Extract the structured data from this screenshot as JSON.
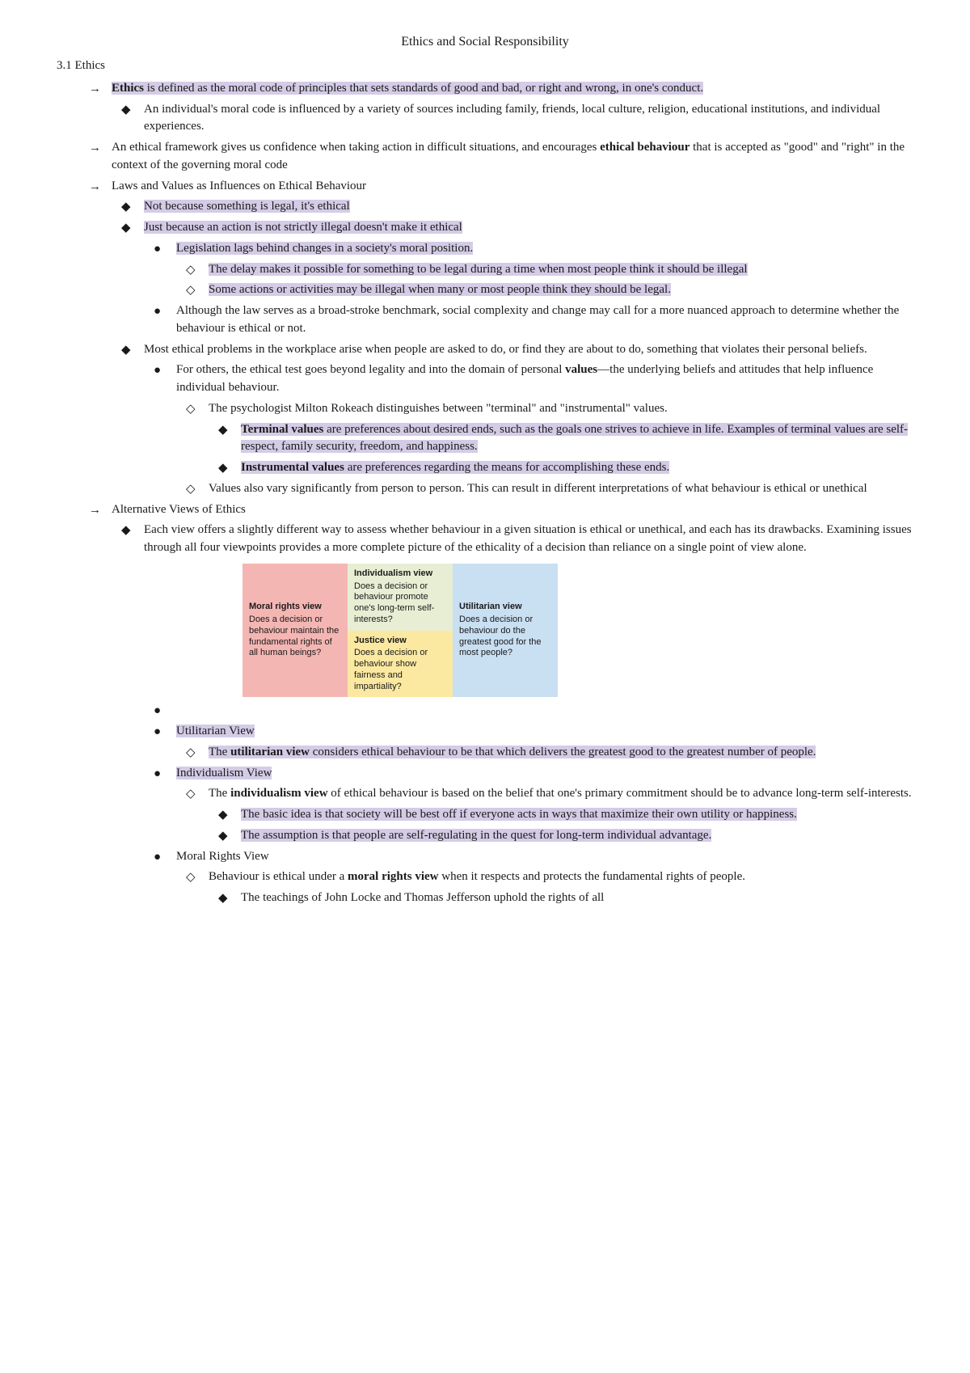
{
  "title": "Ethics and Social Responsibility",
  "section": "3.1 Ethics",
  "items": {
    "a1_pre": "Ethics",
    "a1_post": " is defined as the moral code of principles that sets standards of good and bad, or right and wrong, in one's conduct.",
    "a1a": "An individual's moral code is influenced by a variety of sources including family, friends, local culture, religion, educational institutions, and individual experiences.",
    "a2_pre": "An ethical framework gives us confidence when taking action in difficult situations, and encourages ",
    "a2_b": "ethical behaviour",
    "a2_post": " that is accepted as \"good\" and \"right\" in the context of the governing moral code",
    "a3": "Laws and Values as Influences on Ethical Behaviour",
    "a3a": "Not because something is legal, it's ethical",
    "a3b": "Just because an action is not strictly illegal doesn't make it ethical",
    "a3b1": "Legislation lags behind changes in a society's moral position.",
    "a3b1a": "The delay makes it possible for something to be legal during a time when most people think it should be illegal",
    "a3b1b": "Some actions or activities may be illegal when many or most people think they should be legal.",
    "a3b2": "Although the law serves as a broad-stroke benchmark, social complexity and change may call for a more nuanced approach to determine whether the behaviour is ethical or not.",
    "a3c": "Most ethical problems in the workplace arise when people are asked to do, or find they are about to do, something that violates their personal beliefs.",
    "a3c1_pre": "For others, the ethical test goes beyond legality and into the domain of personal ",
    "a3c1_b": "values",
    "a3c1_post": "—the underlying beliefs and attitudes that help influence individual behaviour.",
    "a3c1a": "The psychologist Milton Rokeach distinguishes between \"terminal\" and \"instrumental\" values.",
    "a3c1a1_b": "Terminal values",
    "a3c1a1_post": " are preferences about desired ends, such as the goals one strives to achieve in life. Examples of terminal values are self-respect, family security, freedom, and happiness.",
    "a3c1a2_b": "Instrumental values",
    "a3c1a2_post": " are preferences regarding the means for accomplishing these ends.",
    "a3c1b": "Values also vary significantly from person to person. This can result in different interpretations of what behaviour is ethical or unethical",
    "a4": "Alternative Views of Ethics",
    "a4a": "Each view offers a slightly different way to assess whether behaviour in a given situation is ethical or unethical, and each has its drawbacks. Examining issues through all four viewpoints provides a more complete picture of the ethicality of a decision than reliance on a single point of view alone.",
    "diagram": {
      "moral": {
        "title": "Moral rights view",
        "body": "Does a decision or behaviour maintain the fundamental rights of all human beings?",
        "bg": "#f4b6b3"
      },
      "indiv": {
        "title": "Individualism view",
        "body": "Does a decision or behaviour promote one's long-term self-interests?",
        "bg": "#e8eed4"
      },
      "justice": {
        "title": "Justice view",
        "body": "Does a decision or behaviour show fairness and impartiality?",
        "bg": "#fbe9a1"
      },
      "util": {
        "title": "Utilitarian view",
        "body": "Does a decision or behaviour do the greatest good for the most people?",
        "bg": "#c9dff2"
      }
    },
    "a4b": "Utilitarian View",
    "a4b1_pre": "The ",
    "a4b1_b": "utilitarian view",
    "a4b1_post": " considers ethical behaviour to be that which delivers the greatest good to the greatest number of people.",
    "a4c": "Individualism View",
    "a4c1_pre": "The ",
    "a4c1_b": "individualism view",
    "a4c1_post": " of ethical behaviour is based on the belief that one's primary commitment should be to advance long-term self-interests.",
    "a4c1a": "The basic idea is that society will be best off if everyone acts in ways that maximize their own utility or happiness.",
    "a4c1b": "The assumption is that people are self-regulating in the quest for long-term individual advantage.",
    "a4d": "Moral Rights View",
    "a4d1_pre": "Behaviour is ethical under a ",
    "a4d1_b": "moral rights view",
    "a4d1_post": " when it respects and protects the fundamental rights of people.",
    "a4d1a": "The teachings of John Locke and Thomas Jefferson uphold the rights of all"
  },
  "bullets": {
    "arrow": "→",
    "diamond": "◆",
    "dot": "●",
    "hollow": "◇"
  }
}
